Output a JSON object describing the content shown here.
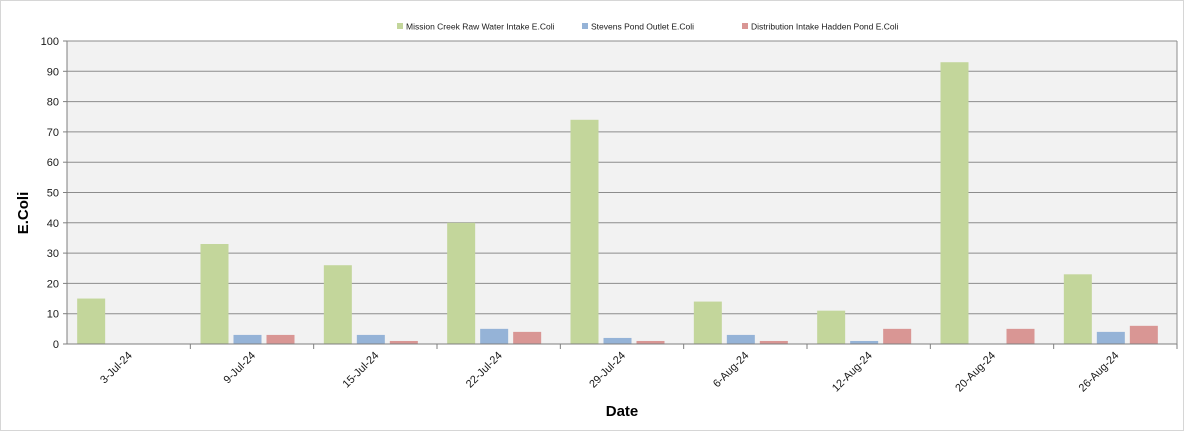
{
  "chart_data": {
    "type": "bar",
    "categories": [
      "3-Jul-24",
      "9-Jul-24",
      "15-Jul-24",
      "22-Jul-24",
      "29-Jul-24",
      "6-Aug-24",
      "12-Aug-24",
      "20-Aug-24",
      "26-Aug-24"
    ],
    "series": [
      {
        "name": "Mission Creek Raw Water Intake E.Coli",
        "color": "#c3d69b",
        "values": [
          15,
          33,
          26,
          40,
          74,
          14,
          11,
          93,
          23
        ]
      },
      {
        "name": "Stevens Pond Outlet E.Coli",
        "color": "#95b3d7",
        "values": [
          0,
          3,
          3,
          5,
          2,
          3,
          1,
          0,
          4
        ]
      },
      {
        "name": "Distribution Intake Hadden Pond E.Coli",
        "color": "#d99694",
        "values": [
          0,
          3,
          1,
          4,
          1,
          1,
          5,
          5,
          6
        ]
      }
    ],
    "title": "",
    "xlabel": "Date",
    "ylabel": "E.Coli",
    "ylim": [
      0,
      100
    ],
    "yticks": [
      0,
      10,
      20,
      30,
      40,
      50,
      60,
      70,
      80,
      90,
      100
    ],
    "grid": true,
    "legend_position": "top",
    "plot_background": "#f2f2f2"
  }
}
